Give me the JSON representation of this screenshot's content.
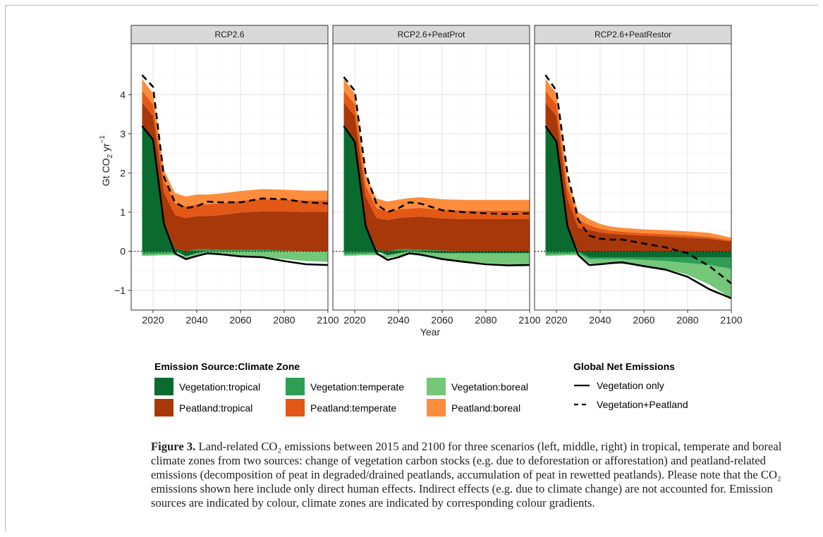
{
  "caption": {
    "label": "Figure 3.",
    "text": "Land-related CO₂ emissions between 2015 and 2100 for three scenarios (left, middle, right) in tropical, temperate and boreal climate zones from two sources: change of vegetation carbon stocks (e.g. due to deforestation or afforestation) and peatland-related emissions (decomposition of peat in degraded/drained peatlands, accumulation of peat in rewetted peatlands). Please note that the CO₂ emissions shown here include only direct human effects. Indirect effects (e.g. due to climate change) are not accounted for. Emission sources are indicated by colour, climate zones are indicated by corresponding colour gradients."
  },
  "legend": {
    "fill_title": "Emission Source:Climate Zone",
    "line_title": "Global Net Emissions",
    "lines": [
      {
        "label": "Vegetation only",
        "style": "solid"
      },
      {
        "label": "Vegetation+Peatland",
        "style": "dashed"
      }
    ]
  },
  "chart_data": {
    "type": "area",
    "xlabel": "Year",
    "ylabel": "Gt CO₂ yr⁻¹",
    "xlim": [
      2010,
      2100
    ],
    "ylim": [
      -1.5,
      5.3
    ],
    "xticks": [
      2020,
      2040,
      2060,
      2080,
      2100
    ],
    "yticks": [
      -1,
      0,
      1,
      2,
      3,
      4
    ],
    "ytick_labels": [
      "−1",
      "0",
      "1",
      "2",
      "3",
      "4"
    ],
    "grid": true,
    "zero_line": "dotted",
    "stacked": true,
    "colors": {
      "Vegetation:tropical": "#0b6b2f",
      "Vegetation:temperate": "#2e9e55",
      "Vegetation:boreal": "#75c77a",
      "Peatland:tropical": "#a8380a",
      "Peatland:temperate": "#e35817",
      "Peatland:boreal": "#fd8d3c"
    },
    "panels": [
      {
        "title": "RCP2.6",
        "x": [
          2015,
          2020,
          2025,
          2030,
          2035,
          2040,
          2045,
          2050,
          2060,
          2070,
          2080,
          2090,
          2100
        ],
        "series": [
          {
            "name": "Vegetation:tropical",
            "values": [
              3.25,
              2.85,
              0.75,
              0.08,
              -0.13,
              -0.05,
              0.0,
              0.0,
              0.0,
              0.0,
              0.0,
              0.0,
              0.0
            ]
          },
          {
            "name": "Vegetation:temperate",
            "values": [
              -0.08,
              -0.07,
              -0.06,
              -0.05,
              0.0,
              0.05,
              0.05,
              0.04,
              0.04,
              0.04,
              0.02,
              0.0,
              0.0
            ]
          },
          {
            "name": "Vegetation:boreal",
            "values": [
              -0.04,
              -0.04,
              -0.04,
              -0.05,
              -0.07,
              -0.07,
              -0.08,
              -0.1,
              -0.12,
              -0.15,
              -0.2,
              -0.25,
              -0.27
            ]
          },
          {
            "name": "Peatland:tropical",
            "values": [
              0.55,
              0.6,
              0.75,
              0.85,
              0.85,
              0.85,
              0.85,
              0.88,
              0.95,
              0.98,
              1.0,
              1.0,
              1.0
            ]
          },
          {
            "name": "Peatland:temperate",
            "values": [
              0.3,
              0.3,
              0.3,
              0.3,
              0.3,
              0.3,
              0.3,
              0.3,
              0.3,
              0.32,
              0.3,
              0.3,
              0.3
            ]
          },
          {
            "name": "Peatland:boreal",
            "values": [
              0.3,
              0.28,
              0.27,
              0.26,
              0.25,
              0.25,
              0.25,
              0.25,
              0.25,
              0.25,
              0.25,
              0.25,
              0.25
            ]
          }
        ],
        "vegetation_only": [
          3.2,
          2.85,
          0.7,
          -0.05,
          -0.2,
          -0.12,
          -0.05,
          -0.07,
          -0.13,
          -0.15,
          -0.25,
          -0.33,
          -0.35
        ],
        "vegetation_peatland": [
          4.5,
          4.2,
          1.9,
          1.25,
          1.1,
          1.15,
          1.27,
          1.25,
          1.25,
          1.35,
          1.33,
          1.25,
          1.22
        ]
      },
      {
        "title": "RCP2.6+PeatProt",
        "x": [
          2015,
          2020,
          2025,
          2030,
          2035,
          2040,
          2045,
          2050,
          2060,
          2070,
          2080,
          2090,
          2100
        ],
        "series": [
          {
            "name": "Vegetation:tropical",
            "values": [
              3.25,
              2.85,
              0.7,
              0.05,
              -0.1,
              -0.05,
              0.0,
              -0.02,
              -0.05,
              -0.05,
              -0.05,
              -0.05,
              -0.05
            ]
          },
          {
            "name": "Vegetation:temperate",
            "values": [
              -0.08,
              -0.07,
              -0.06,
              -0.05,
              0.0,
              0.05,
              0.05,
              0.04,
              0.02,
              0.0,
              0.0,
              0.0,
              0.0
            ]
          },
          {
            "name": "Vegetation:boreal",
            "values": [
              -0.04,
              -0.04,
              -0.04,
              -0.05,
              -0.07,
              -0.07,
              -0.08,
              -0.1,
              -0.15,
              -0.2,
              -0.25,
              -0.28,
              -0.3
            ]
          },
          {
            "name": "Peatland:tropical",
            "values": [
              0.55,
              0.6,
              0.7,
              0.8,
              0.8,
              0.8,
              0.82,
              0.85,
              0.82,
              0.82,
              0.82,
              0.82,
              0.82
            ]
          },
          {
            "name": "Peatland:temperate",
            "values": [
              0.3,
              0.3,
              0.28,
              0.25,
              0.22,
              0.22,
              0.22,
              0.22,
              0.22,
              0.22,
              0.22,
              0.22,
              0.22
            ]
          },
          {
            "name": "Peatland:boreal",
            "values": [
              0.3,
              0.28,
              0.27,
              0.25,
              0.25,
              0.25,
              0.27,
              0.27,
              0.27,
              0.27,
              0.27,
              0.27,
              0.27
            ]
          }
        ],
        "vegetation_only": [
          3.2,
          2.8,
          0.65,
          -0.05,
          -0.22,
          -0.15,
          -0.05,
          -0.08,
          -0.2,
          -0.27,
          -0.33,
          -0.36,
          -0.35
        ],
        "vegetation_peatland": [
          4.45,
          4.1,
          2.0,
          1.2,
          1.0,
          1.1,
          1.25,
          1.22,
          1.05,
          1.0,
          0.97,
          0.95,
          0.97
        ]
      },
      {
        "title": "RCP2.6+PeatRestor",
        "x": [
          2015,
          2020,
          2025,
          2030,
          2035,
          2040,
          2045,
          2050,
          2060,
          2070,
          2080,
          2090,
          2100
        ],
        "series": [
          {
            "name": "Vegetation:tropical",
            "values": [
              3.25,
              2.85,
              0.7,
              0.0,
              -0.15,
              -0.15,
              -0.15,
              -0.15,
              -0.15,
              -0.15,
              -0.15,
              -0.15,
              -0.15
            ]
          },
          {
            "name": "Vegetation:temperate",
            "values": [
              -0.08,
              -0.07,
              -0.06,
              -0.05,
              -0.05,
              -0.05,
              -0.05,
              -0.05,
              -0.07,
              -0.1,
              -0.15,
              -0.2,
              -0.3
            ]
          },
          {
            "name": "Vegetation:boreal",
            "values": [
              -0.04,
              -0.04,
              -0.04,
              -0.05,
              -0.1,
              -0.12,
              -0.12,
              -0.12,
              -0.15,
              -0.2,
              -0.3,
              -0.5,
              -0.75
            ]
          },
          {
            "name": "Peatland:tropical",
            "values": [
              0.55,
              0.6,
              0.65,
              0.6,
              0.55,
              0.48,
              0.45,
              0.43,
              0.4,
              0.38,
              0.35,
              0.32,
              0.25
            ]
          },
          {
            "name": "Peatland:temperate",
            "values": [
              0.3,
              0.3,
              0.28,
              0.2,
              0.12,
              0.1,
              0.08,
              0.07,
              0.06,
              0.06,
              0.06,
              0.05,
              0.03
            ]
          },
          {
            "name": "Peatland:boreal",
            "values": [
              0.3,
              0.28,
              0.22,
              0.2,
              0.15,
              0.12,
              0.1,
              0.1,
              0.1,
              0.1,
              0.1,
              0.1,
              0.07
            ]
          }
        ],
        "vegetation_only": [
          3.2,
          2.8,
          0.65,
          -0.1,
          -0.35,
          -0.33,
          -0.3,
          -0.28,
          -0.38,
          -0.47,
          -0.65,
          -0.97,
          -1.2
        ],
        "vegetation_peatland": [
          4.5,
          4.1,
          2.0,
          0.8,
          0.4,
          0.32,
          0.3,
          0.3,
          0.2,
          0.1,
          -0.05,
          -0.38,
          -0.82
        ]
      }
    ]
  }
}
